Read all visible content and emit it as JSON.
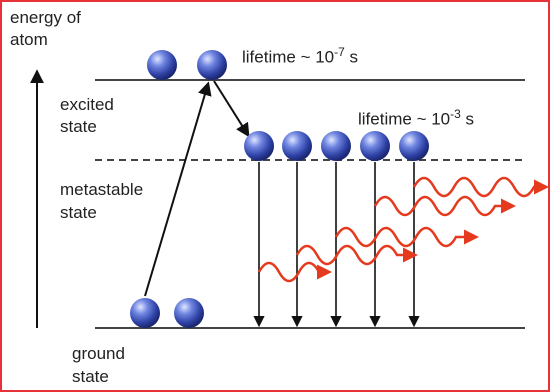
{
  "labels": {
    "y_axis_line1": "energy of",
    "y_axis_line2": "atom",
    "excited_line1": "excited",
    "excited_line2": "state",
    "metastable_line1": "metastable",
    "metastable_line2": "state",
    "ground_line1": "ground",
    "ground_line2": "state",
    "lifetime_excited_prefix": "lifetime ~ 10",
    "lifetime_excited_exp": "-7",
    "lifetime_excited_unit": " s",
    "lifetime_meta_prefix": "lifetime ~ 10",
    "lifetime_meta_exp": "-3",
    "lifetime_meta_unit": " s"
  },
  "colors": {
    "frame": "#e8323a",
    "level_line": "#444444",
    "atom_fill": "#3a4fb0",
    "photon": "#e53a1e",
    "arrow": "#111111"
  },
  "atoms": {
    "excited": 2,
    "metastable": 5,
    "ground": 2
  }
}
